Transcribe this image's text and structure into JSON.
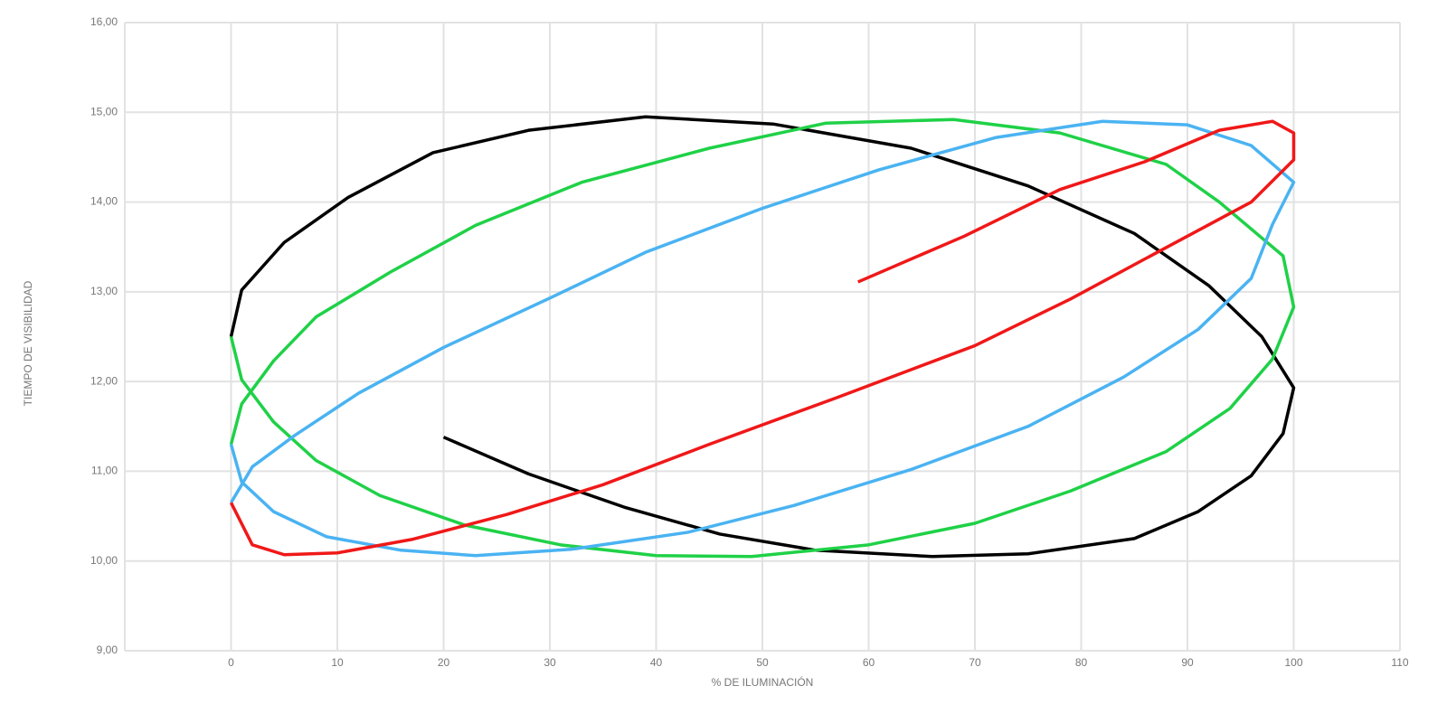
{
  "chart_data": {
    "type": "line",
    "xlabel": "% DE ILUMINACIÓN",
    "ylabel": "TIEMPO DE VISIBILIDAD",
    "xlim": [
      -10,
      110
    ],
    "ylim": [
      9,
      16
    ],
    "xticks": [
      0,
      10,
      20,
      30,
      40,
      50,
      60,
      70,
      80,
      90,
      100,
      110
    ],
    "yticks": [
      {
        "value": 9,
        "label": "9,00"
      },
      {
        "value": 10,
        "label": "10,00"
      },
      {
        "value": 11,
        "label": "11,00"
      },
      {
        "value": 12,
        "label": "12,00"
      },
      {
        "value": 13,
        "label": "13,00"
      },
      {
        "value": 14,
        "label": "14,00"
      },
      {
        "value": 15,
        "label": "15,00"
      },
      {
        "value": 16,
        "label": "16,00"
      }
    ],
    "grid": true,
    "series": [
      {
        "color": "#000000",
        "x": [
          20,
          28,
          37,
          46,
          55,
          66,
          75,
          85,
          91,
          96,
          99,
          100,
          97,
          92,
          85,
          75,
          64,
          51,
          39,
          28,
          19,
          11,
          5,
          1,
          0
        ],
        "values": [
          11.38,
          10.97,
          10.6,
          10.3,
          10.12,
          10.05,
          10.08,
          10.25,
          10.55,
          10.95,
          11.42,
          11.93,
          12.5,
          13.07,
          13.65,
          14.18,
          14.6,
          14.87,
          14.95,
          14.8,
          14.55,
          14.05,
          13.55,
          13.02,
          12.5
        ]
      },
      {
        "color": "#1fd147",
        "x": [
          0,
          1,
          4,
          8,
          14,
          22,
          31,
          40,
          49,
          60,
          70,
          79,
          88,
          94,
          98,
          100,
          99,
          93,
          88,
          78,
          68,
          56,
          45,
          33,
          23,
          15,
          8,
          4,
          1,
          0
        ],
        "values": [
          12.5,
          12.02,
          11.55,
          11.12,
          10.73,
          10.4,
          10.18,
          10.06,
          10.05,
          10.18,
          10.42,
          10.78,
          11.22,
          11.7,
          12.25,
          12.83,
          13.4,
          14.0,
          14.42,
          14.77,
          14.92,
          14.88,
          14.6,
          14.22,
          13.74,
          13.22,
          12.72,
          12.23,
          11.75,
          11.3
        ]
      },
      {
        "color": "#4ab3f2",
        "x": [
          0,
          1,
          4,
          9,
          16,
          23,
          32,
          43,
          53,
          64,
          75,
          84,
          91,
          96,
          98,
          100,
          96,
          90,
          82,
          72,
          61,
          50,
          39,
          30,
          20,
          12,
          6,
          2,
          0
        ],
        "values": [
          11.3,
          10.88,
          10.55,
          10.27,
          10.12,
          10.06,
          10.13,
          10.32,
          10.62,
          11.02,
          11.5,
          12.05,
          12.58,
          13.15,
          13.75,
          14.22,
          14.63,
          14.86,
          14.9,
          14.72,
          14.36,
          13.93,
          13.44,
          12.93,
          12.38,
          11.87,
          11.4,
          11.05,
          10.65
        ]
      },
      {
        "color": "#f01818",
        "x": [
          0,
          2,
          5,
          10,
          17,
          26,
          35,
          45,
          57,
          70,
          79,
          87,
          96,
          100,
          100,
          98,
          93,
          86,
          78,
          69,
          59
        ],
        "values": [
          10.65,
          10.18,
          10.07,
          10.09,
          10.24,
          10.52,
          10.85,
          11.3,
          11.82,
          12.4,
          12.92,
          13.43,
          14.0,
          14.47,
          14.77,
          14.9,
          14.8,
          14.45,
          14.14,
          13.62,
          13.11
        ]
      }
    ]
  }
}
